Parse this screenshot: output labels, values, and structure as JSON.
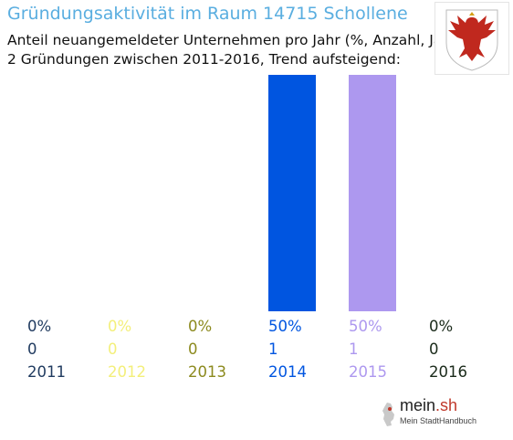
{
  "header": {
    "title": "Gründungsaktivität im Raum 14715 Schollene",
    "subtitle_line1": "Anteil neuangemeldeter Unternehmen pro Jahr (%, Anzahl, Jahr)",
    "subtitle_line2": "2 Gründungen zwischen 2011-2016, Trend aufsteigend:"
  },
  "crest": {
    "icon": "eagle-coat-of-arms-icon"
  },
  "chart_data": {
    "type": "bar",
    "categories": [
      "2011",
      "2012",
      "2013",
      "2014",
      "2015",
      "2016"
    ],
    "values": [
      0,
      0,
      0,
      50,
      50,
      0
    ],
    "counts": [
      0,
      0,
      0,
      1,
      1,
      0
    ],
    "percent_labels": [
      "0%",
      "0%",
      "0%",
      "50%",
      "50%",
      "0%"
    ],
    "colors": [
      "#1f3a5f",
      "#f3ef7a",
      "#8c8a1e",
      "#0055e0",
      "#ad98ef",
      "#1a2a1a"
    ],
    "ylim": [
      0,
      50
    ],
    "grid": false,
    "legend": false
  },
  "footer": {
    "logo_name": "mein",
    "logo_dot": ".sh",
    "logo_sub": "Mein StadtHandbuch",
    "logo_icon": "germany-map-icon"
  }
}
